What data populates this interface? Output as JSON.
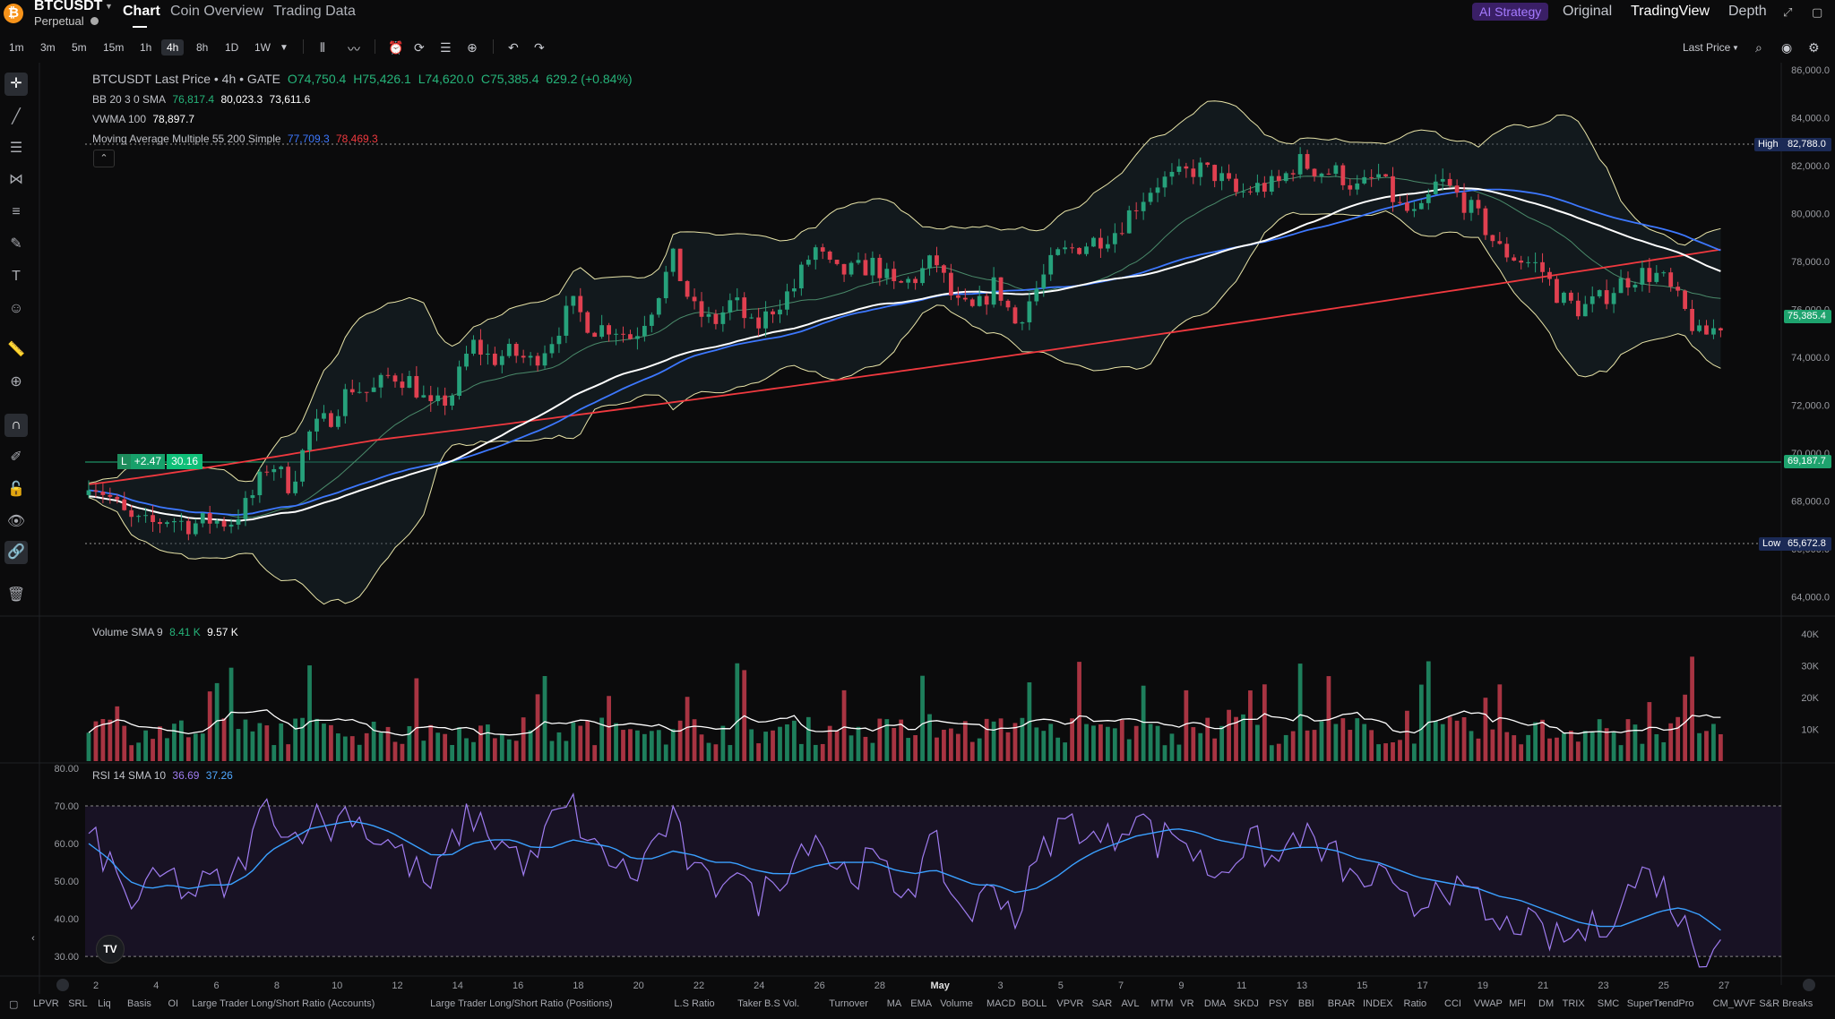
{
  "header": {
    "coin_glyph": "₿",
    "symbol": "BTCUSDT",
    "market_type": "Perpetual",
    "tabs": [
      {
        "label": "Chart",
        "active": true
      },
      {
        "label": "Coin Overview",
        "active": false
      },
      {
        "label": "Trading Data",
        "active": false
      }
    ],
    "ai_strategy_label": "AI Strategy",
    "view_tabs": [
      {
        "label": "Original",
        "active": false
      },
      {
        "label": "TradingView",
        "active": true
      },
      {
        "label": "Depth",
        "active": false
      }
    ]
  },
  "toolbar": {
    "timeframes": [
      "1m",
      "3m",
      "5m",
      "15m",
      "1h",
      "4h",
      "8h",
      "1D",
      "1W"
    ],
    "active_timeframe": "4h",
    "price_source": "Last Price"
  },
  "legend": {
    "main": "BTCUSDT Last Price • 4h • GATE",
    "ohlc": {
      "open": "O74,750.4",
      "high": "H75,426.1",
      "low": "L74,620.0",
      "close": "C75,385.4",
      "change": "629.2 (+0.84%)"
    },
    "bb": {
      "label": "BB 20 3 0 SMA",
      "basis": "76,817.4",
      "upper": "80,023.3",
      "lower": "73,611.6"
    },
    "vwma": {
      "label": "VWMA 100",
      "value": "78,897.7"
    },
    "mam": {
      "label": "Moving Average Multiple 55 200 Simple",
      "ma55": "77,709.3",
      "ma200": "78,469.3"
    },
    "volume": {
      "label": "Volume SMA 9",
      "volume": "8.41 K",
      "sma": "9.57 K"
    },
    "rsi": {
      "label": "RSI 14 SMA 10",
      "rsi": "36.69",
      "sma": "37.26"
    }
  },
  "position": {
    "side": "L",
    "pnl": "+2.47",
    "qty": "30.16"
  },
  "price_axis": {
    "labels": [
      "86,000.0",
      "84,000.0",
      "82,000.0",
      "80,000.0",
      "78,000.0",
      "76,000.0",
      "74,000.0",
      "72,000.0",
      "70,000.0",
      "68,000.0",
      "66,000.0",
      "64,000.0"
    ],
    "high_label": "High",
    "high_value": "82,788.0",
    "low_label": "Low",
    "low_value": "65,672.8",
    "last_price": "75,385.4",
    "entry_price": "69,187.7"
  },
  "volume_axis": [
    "40K",
    "30K",
    "20K",
    "10K"
  ],
  "rsi_axis": [
    "80.00",
    "70.00",
    "60.00",
    "50.00",
    "40.00",
    "30.00"
  ],
  "time_axis": [
    "2",
    "4",
    "6",
    "8",
    "10",
    "12",
    "14",
    "16",
    "18",
    "20",
    "22",
    "24",
    "26",
    "28",
    "May",
    "3",
    "5",
    "7",
    "9",
    "11",
    "13",
    "15",
    "17",
    "19",
    "21",
    "23",
    "25",
    "27"
  ],
  "indicator_tabs": [
    "LPVR",
    "SRL",
    "Liq",
    "Basis",
    "OI",
    "Large Trader Long/Short Ratio (Accounts)",
    "Large Trader Long/Short Ratio (Positions)",
    "L.S Ratio",
    "Taker B.S Vol.",
    "Turnover",
    "MA",
    "EMA",
    "Volume",
    "MACD",
    "BOLL",
    "VPVR",
    "SAR",
    "AVL",
    "MTM",
    "VR",
    "DMA",
    "SKDJ",
    "PSY",
    "BBI",
    "BRAR",
    "INDEX",
    "Ratio",
    "CCI",
    "VWAP",
    "MFI",
    "DM",
    "TRIX",
    "SMC",
    "SuperTrendPro",
    "CM_WVF",
    "S&R Breaks"
  ],
  "colors": {
    "up": "#26a17b",
    "down": "#e04050",
    "ma55": "#3d78ff",
    "ma200": "#f0393f",
    "vwma": "#ffffff",
    "bb": "#e8e4a8",
    "rsi": "#9f7cf0",
    "rsi_sma": "#3aa0ff",
    "accent_ai": "#a57bff"
  },
  "chart_data": {
    "type": "candlestick",
    "instrument": "BTCUSDT",
    "timeframe": "4h",
    "x_ticks": [
      "2",
      "4",
      "6",
      "8",
      "10",
      "12",
      "14",
      "16",
      "18",
      "20",
      "22",
      "24",
      "26",
      "28",
      "May",
      "3",
      "5",
      "7",
      "9",
      "11",
      "13",
      "15",
      "17",
      "19",
      "21",
      "23",
      "25",
      "27"
    ],
    "ylim": [
      63200,
      86000
    ],
    "close_path": [
      68900,
      68200,
      67200,
      67000,
      67300,
      67000,
      67200,
      67100,
      68000,
      69700,
      68600,
      70900,
      71500,
      72800,
      72500,
      73300,
      73000,
      71800,
      72400,
      74600,
      73900,
      74200,
      73800,
      74800,
      76200,
      75200,
      75300,
      74800,
      76200,
      78100,
      76000,
      75400,
      76400,
      75100,
      76100,
      76900,
      78600,
      77500,
      77600,
      77900,
      76900,
      77300,
      78100,
      76200,
      75900,
      77100,
      75400,
      76800,
      78200,
      78600,
      78900,
      79300,
      80400,
      81300,
      81500,
      81900,
      81600,
      80800,
      81100,
      81200,
      82200,
      81800,
      81700,
      81000,
      81600,
      80300,
      79800,
      81400,
      80700,
      79800,
      78500,
      78100,
      77800,
      76500,
      76000,
      76400,
      77100,
      77500,
      77400,
      76200,
      74800,
      75385
    ],
    "volume_ylim": [
      0,
      45000
    ],
    "rsi_ylim": [
      26,
      80
    ],
    "rsi_levels": [
      70,
      30
    ],
    "rsi_path": [
      62,
      55,
      44,
      48,
      52,
      46,
      50,
      48,
      60,
      72,
      60,
      68,
      64,
      70,
      62,
      60,
      54,
      48,
      60,
      68,
      62,
      58,
      54,
      66,
      70,
      58,
      56,
      50,
      60,
      66,
      52,
      48,
      56,
      44,
      50,
      56,
      64,
      54,
      52,
      56,
      48,
      50,
      60,
      44,
      42,
      50,
      40,
      54,
      64,
      66,
      60,
      62,
      70,
      60,
      64,
      56,
      52,
      58,
      60,
      54,
      64,
      58,
      56,
      48,
      52,
      44,
      42,
      52,
      46,
      44,
      36,
      40,
      36,
      34,
      36,
      38,
      44,
      52,
      50,
      40,
      30,
      37
    ],
    "rsi_sma_path": [
      60,
      56,
      50,
      48,
      49,
      48,
      49,
      49,
      52,
      58,
      61,
      64,
      65,
      66,
      65,
      63,
      60,
      57,
      57,
      60,
      61,
      61,
      59,
      59,
      61,
      60,
      59,
      56,
      56,
      58,
      57,
      55,
      55,
      53,
      52,
      52,
      54,
      55,
      55,
      55,
      53,
      52,
      53,
      51,
      49,
      49,
      47,
      48,
      51,
      55,
      58,
      60,
      62,
      63,
      64,
      63,
      61,
      60,
      59,
      58,
      59,
      59,
      58,
      56,
      55,
      53,
      51,
      50,
      49,
      48,
      46,
      45,
      43,
      41,
      39,
      38,
      38,
      40,
      42,
      43,
      41,
      37
    ]
  }
}
